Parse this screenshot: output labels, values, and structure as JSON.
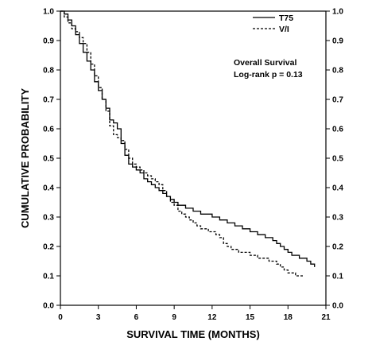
{
  "chart_data": {
    "type": "line",
    "xlabel": "SURVIVAL TIME (MONTHS)",
    "ylabel": "CUMULATIVE PROBABILITY",
    "xlim": [
      0,
      21
    ],
    "ylim": [
      0,
      1
    ],
    "x_ticks": [
      "0",
      "3",
      "6",
      "9",
      "12",
      "15",
      "18",
      "21"
    ],
    "y_ticks": [
      "0.0",
      "0.1",
      "0.2",
      "0.3",
      "0.4",
      "0.5",
      "0.6",
      "0.7",
      "0.8",
      "0.9",
      "1.0"
    ],
    "y_ticks_right": true,
    "grid": false,
    "legend_position": "top-right",
    "annotations": [
      "Overall Survival",
      "Log-rank  p = 0.13"
    ],
    "series": [
      {
        "name": "T75",
        "style": "solid",
        "color": "#000000",
        "x": [
          0,
          0.3,
          0.6,
          0.9,
          1.2,
          1.5,
          1.8,
          2.1,
          2.4,
          2.7,
          3.0,
          3.3,
          3.6,
          3.9,
          4.2,
          4.5,
          4.8,
          5.1,
          5.4,
          5.7,
          6.0,
          6.3,
          6.6,
          6.9,
          7.2,
          7.5,
          7.8,
          8.1,
          8.4,
          8.7,
          9.0,
          9.3,
          9.6,
          9.9,
          10.2,
          10.5,
          10.8,
          11.1,
          11.4,
          11.7,
          12.0,
          12.3,
          12.6,
          12.9,
          13.2,
          13.5,
          13.8,
          14.1,
          14.4,
          14.7,
          15.0,
          15.3,
          15.6,
          15.9,
          16.2,
          16.5,
          16.8,
          17.1,
          17.4,
          17.7,
          18.0,
          18.3,
          18.6,
          18.9,
          19.2,
          19.5,
          19.8,
          20.1
        ],
        "y": [
          1.0,
          0.99,
          0.97,
          0.95,
          0.92,
          0.89,
          0.86,
          0.83,
          0.8,
          0.76,
          0.73,
          0.7,
          0.67,
          0.63,
          0.62,
          0.6,
          0.55,
          0.51,
          0.48,
          0.47,
          0.46,
          0.45,
          0.43,
          0.42,
          0.41,
          0.4,
          0.39,
          0.38,
          0.37,
          0.36,
          0.35,
          0.34,
          0.34,
          0.33,
          0.33,
          0.32,
          0.32,
          0.31,
          0.31,
          0.31,
          0.3,
          0.3,
          0.29,
          0.29,
          0.28,
          0.28,
          0.27,
          0.27,
          0.26,
          0.26,
          0.25,
          0.25,
          0.24,
          0.24,
          0.23,
          0.23,
          0.22,
          0.21,
          0.2,
          0.19,
          0.18,
          0.17,
          0.17,
          0.16,
          0.16,
          0.15,
          0.14,
          0.13
        ]
      },
      {
        "name": "V/I",
        "style": "dashed",
        "color": "#000000",
        "x": [
          0,
          0.3,
          0.6,
          0.9,
          1.2,
          1.5,
          1.8,
          2.1,
          2.4,
          2.7,
          3.0,
          3.3,
          3.6,
          3.9,
          4.2,
          4.5,
          4.8,
          5.1,
          5.4,
          5.7,
          6.0,
          6.3,
          6.6,
          6.9,
          7.2,
          7.5,
          7.8,
          8.1,
          8.4,
          8.7,
          9.0,
          9.3,
          9.6,
          9.9,
          10.2,
          10.5,
          10.8,
          11.1,
          11.4,
          11.7,
          12.0,
          12.3,
          12.6,
          12.9,
          13.2,
          13.5,
          13.8,
          14.1,
          14.4,
          14.7,
          15.0,
          15.3,
          15.6,
          15.9,
          16.2,
          16.5,
          16.8,
          17.1,
          17.4,
          17.7,
          18.0,
          18.3,
          18.6,
          18.9,
          19.2
        ],
        "y": [
          1.0,
          0.98,
          0.96,
          0.94,
          0.93,
          0.91,
          0.89,
          0.86,
          0.82,
          0.78,
          0.74,
          0.7,
          0.66,
          0.61,
          0.58,
          0.57,
          0.56,
          0.53,
          0.5,
          0.48,
          0.47,
          0.46,
          0.45,
          0.44,
          0.43,
          0.42,
          0.41,
          0.39,
          0.37,
          0.35,
          0.34,
          0.32,
          0.31,
          0.3,
          0.29,
          0.28,
          0.27,
          0.26,
          0.26,
          0.25,
          0.25,
          0.24,
          0.23,
          0.21,
          0.2,
          0.19,
          0.19,
          0.18,
          0.18,
          0.18,
          0.17,
          0.17,
          0.16,
          0.16,
          0.16,
          0.15,
          0.15,
          0.14,
          0.13,
          0.12,
          0.11,
          0.11,
          0.1,
          0.1,
          0.1
        ]
      }
    ]
  }
}
